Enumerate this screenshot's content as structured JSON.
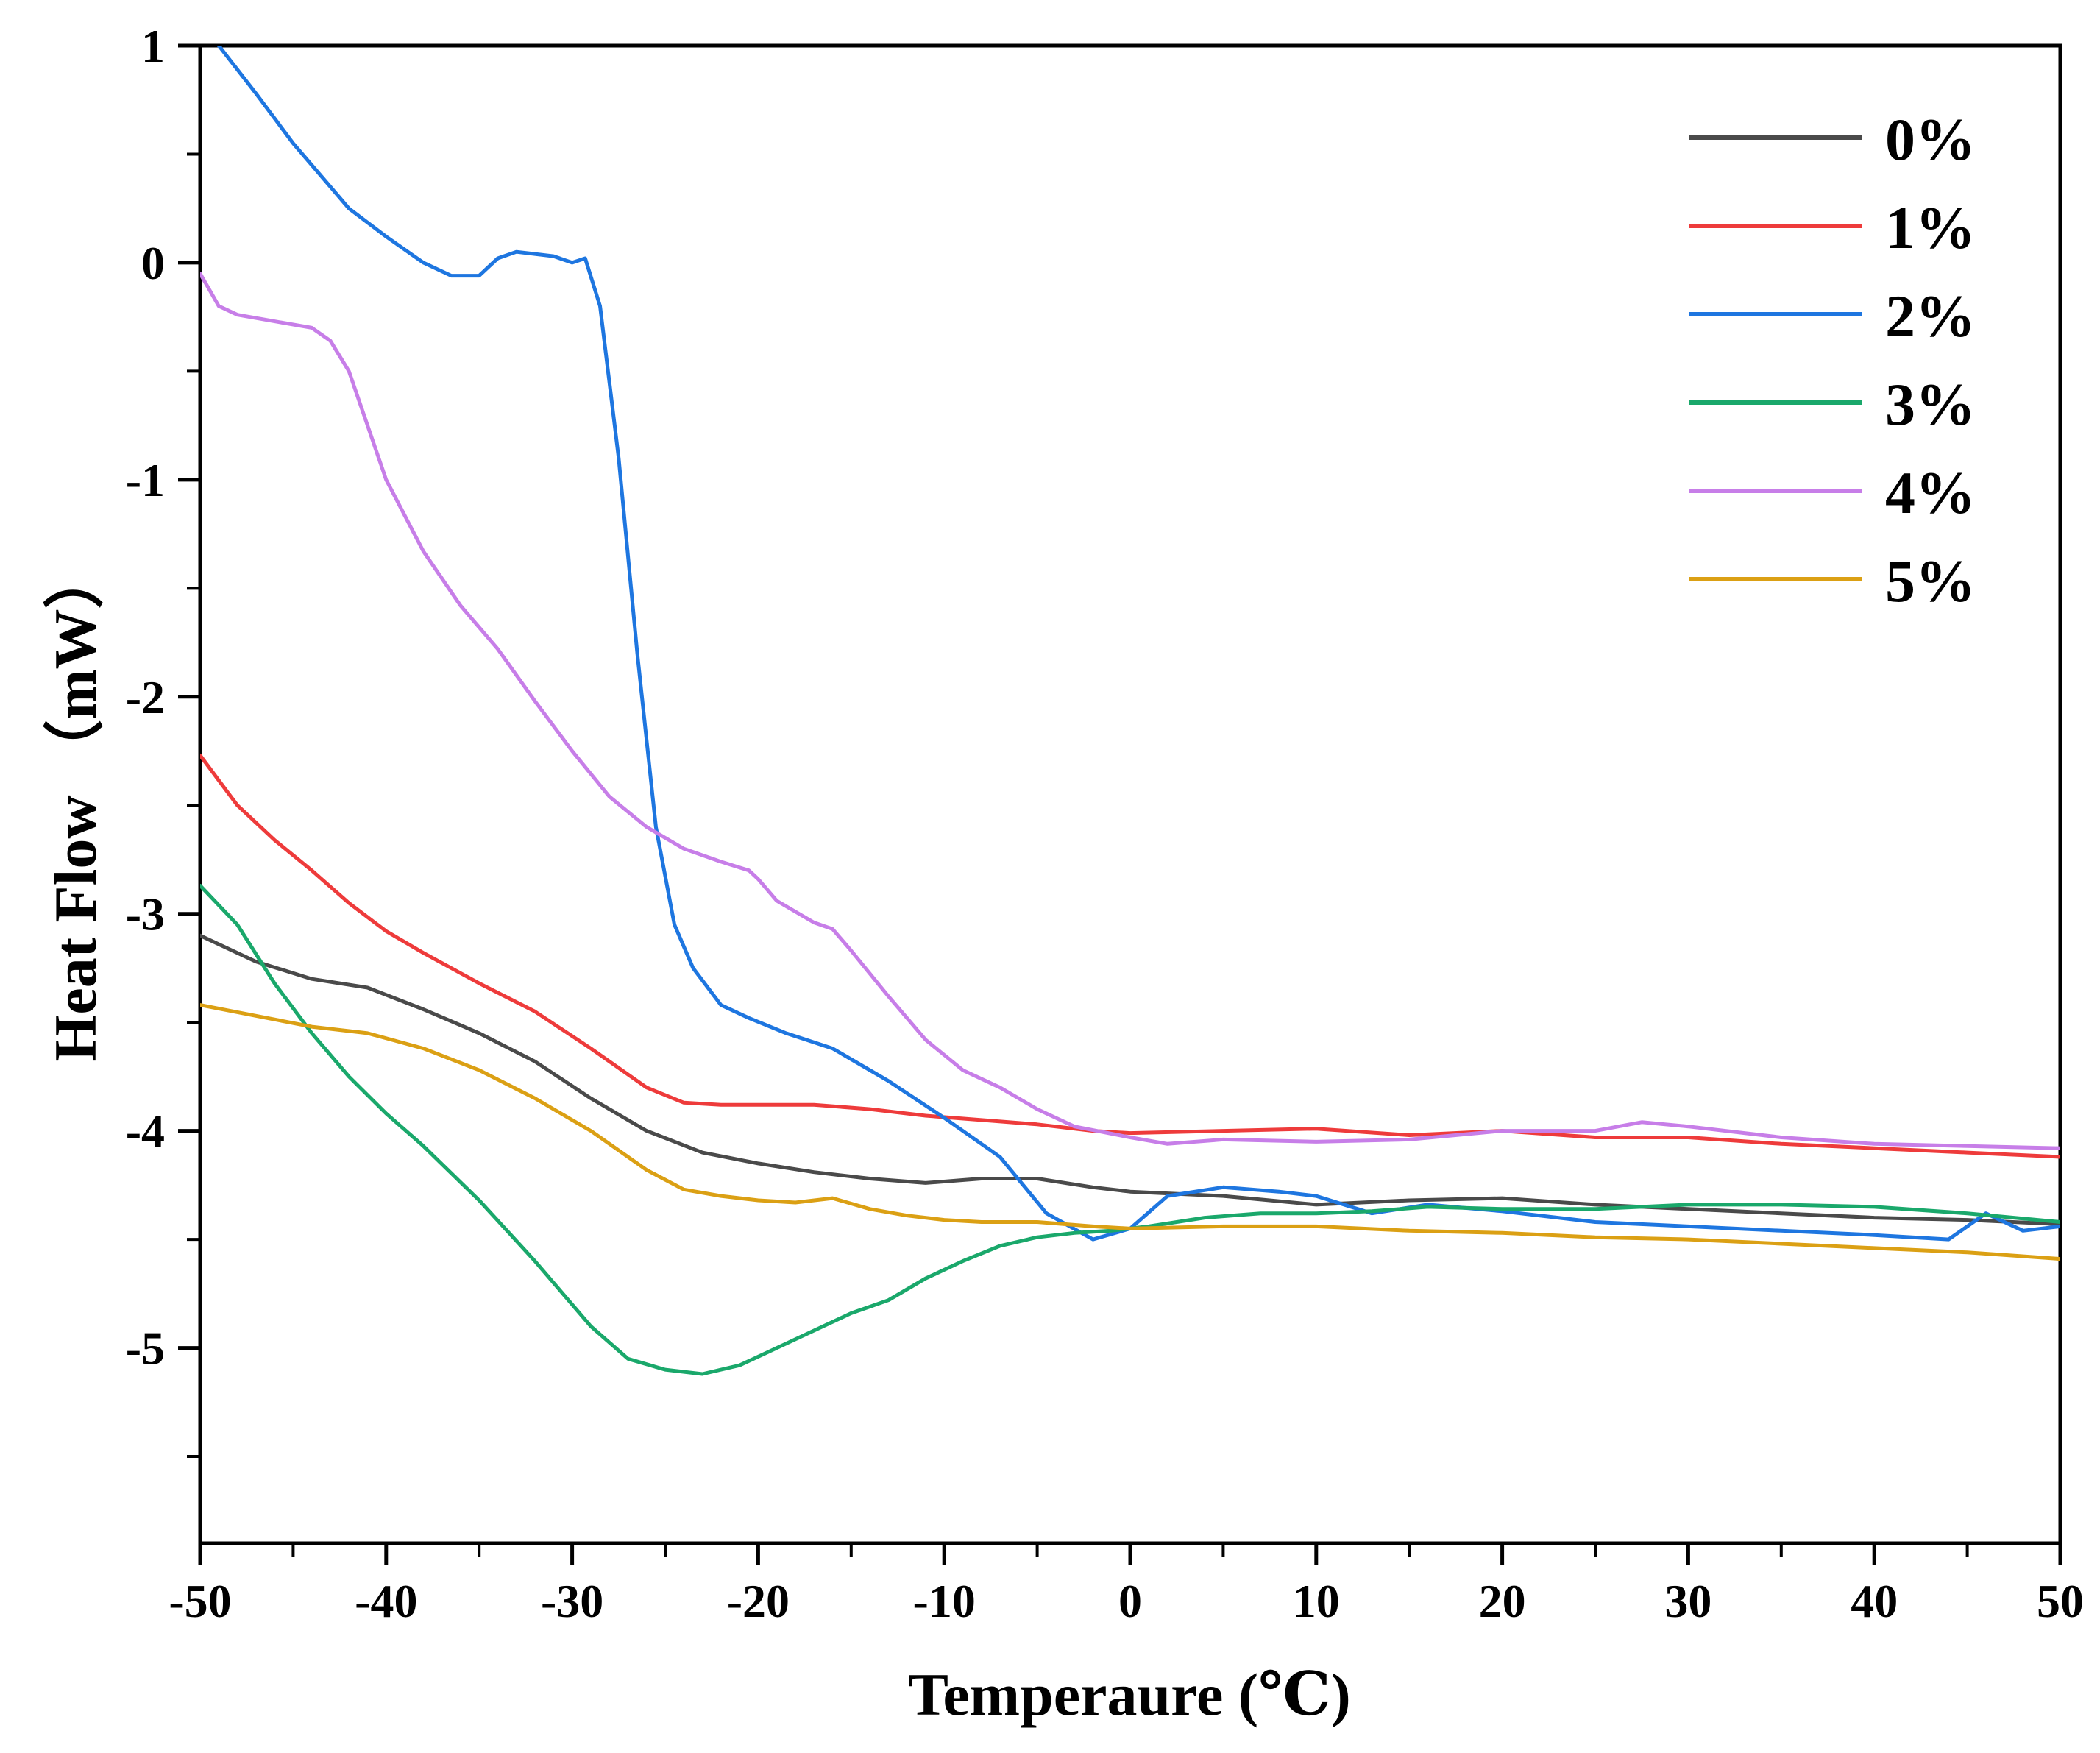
{
  "chart_data": {
    "type": "line",
    "title": "",
    "xlabel": "Temperaure (℃)",
    "ylabel": "Heat Flow （mW）",
    "xlim": [
      -50,
      50
    ],
    "ylim": [
      -5.9,
      1
    ],
    "xticks": [
      -50,
      -40,
      -30,
      -20,
      -10,
      0,
      10,
      20,
      30,
      40,
      50
    ],
    "yticks": [
      1,
      0,
      -1,
      -2,
      -3,
      -4,
      -5
    ],
    "xtick_labels": [
      "-50",
      "-40",
      "-30",
      "-20",
      "-10",
      "0",
      "10",
      "20",
      "30",
      "40",
      "50"
    ],
    "ytick_labels": [
      "1",
      "0",
      "-1",
      "-2",
      "-3",
      "-4",
      "-5"
    ],
    "grid": false,
    "legend_position": "top-right",
    "series": [
      {
        "name": "0%",
        "color": "#4a4a4a",
        "x": [
          -50,
          -47,
          -44,
          -41,
          -38,
          -35,
          -32,
          -29,
          -26,
          -23,
          -20,
          -17,
          -14,
          -11,
          -8,
          -5,
          -2,
          0,
          5,
          10,
          15,
          20,
          25,
          30,
          35,
          40,
          45,
          50
        ],
        "y": [
          -3.1,
          -3.22,
          -3.3,
          -3.34,
          -3.44,
          -3.55,
          -3.68,
          -3.85,
          -4.0,
          -4.1,
          -4.15,
          -4.19,
          -4.22,
          -4.24,
          -4.22,
          -4.22,
          -4.26,
          -4.28,
          -4.3,
          -4.34,
          -4.32,
          -4.31,
          -4.34,
          -4.36,
          -4.38,
          -4.4,
          -4.41,
          -4.43
        ]
      },
      {
        "name": "1%",
        "color": "#ee3b3b",
        "x": [
          -50,
          -48,
          -46,
          -44,
          -42,
          -40,
          -38,
          -35,
          -32,
          -29,
          -26,
          -24,
          -22,
          -20,
          -17,
          -14,
          -11,
          -8,
          -5,
          -2,
          0,
          5,
          10,
          15,
          20,
          25,
          30,
          35,
          40,
          45,
          50
        ],
        "y": [
          -2.27,
          -2.5,
          -2.66,
          -2.8,
          -2.95,
          -3.08,
          -3.18,
          -3.32,
          -3.45,
          -3.62,
          -3.8,
          -3.87,
          -3.88,
          -3.88,
          -3.88,
          -3.9,
          -3.93,
          -3.95,
          -3.97,
          -4.0,
          -4.01,
          -4.0,
          -3.99,
          -4.02,
          -4.0,
          -4.03,
          -4.03,
          -4.06,
          -4.08,
          -4.1,
          -4.12
        ]
      },
      {
        "name": "2%",
        "color": "#1e76e0",
        "x": [
          -49,
          -47,
          -45,
          -42,
          -40,
          -38,
          -36.5,
          -35,
          -34,
          -33,
          -32,
          -31,
          -30,
          -29.3,
          -28.5,
          -27.5,
          -26.5,
          -25.5,
          -24.5,
          -23.5,
          -22,
          -20.5,
          -18.5,
          -16,
          -13,
          -10,
          -7,
          -4.5,
          -2,
          0,
          2,
          5,
          8,
          10,
          13,
          16,
          20,
          25,
          30,
          35,
          40,
          44,
          46,
          48,
          50
        ],
        "y": [
          1.0,
          0.78,
          0.55,
          0.25,
          0.12,
          0.0,
          -0.06,
          -0.06,
          0.02,
          0.05,
          0.04,
          0.03,
          0.0,
          0.02,
          -0.2,
          -0.9,
          -1.8,
          -2.6,
          -3.05,
          -3.25,
          -3.42,
          -3.48,
          -3.55,
          -3.62,
          -3.77,
          -3.94,
          -4.12,
          -4.38,
          -4.5,
          -4.45,
          -4.3,
          -4.26,
          -4.28,
          -4.3,
          -4.38,
          -4.34,
          -4.37,
          -4.42,
          -4.44,
          -4.46,
          -4.48,
          -4.5,
          -4.38,
          -4.46,
          -4.44
        ]
      },
      {
        "name": "3%",
        "color": "#1aa86b",
        "x": [
          -50,
          -48,
          -46,
          -44,
          -42,
          -40,
          -38,
          -35,
          -32,
          -29,
          -27,
          -25,
          -23,
          -21,
          -19,
          -17,
          -15,
          -13,
          -11,
          -9,
          -7,
          -5,
          -3,
          -1,
          1,
          4,
          7,
          10,
          13,
          16,
          20,
          25,
          30,
          35,
          40,
          45,
          50
        ],
        "y": [
          -2.87,
          -3.05,
          -3.32,
          -3.55,
          -3.75,
          -3.92,
          -4.07,
          -4.32,
          -4.6,
          -4.9,
          -5.05,
          -5.1,
          -5.12,
          -5.08,
          -5.0,
          -4.92,
          -4.84,
          -4.78,
          -4.68,
          -4.6,
          -4.53,
          -4.49,
          -4.47,
          -4.46,
          -4.44,
          -4.4,
          -4.38,
          -4.38,
          -4.37,
          -4.35,
          -4.36,
          -4.36,
          -4.34,
          -4.34,
          -4.35,
          -4.38,
          -4.42
        ]
      },
      {
        "name": "4%",
        "color": "#c77ee8",
        "x": [
          -50,
          -49,
          -48,
          -46,
          -44,
          -43,
          -42,
          -41,
          -40,
          -38,
          -36,
          -34,
          -32,
          -30,
          -28,
          -26,
          -24,
          -22,
          -20.5,
          -20,
          -19,
          -17,
          -16,
          -15,
          -13,
          -11,
          -9,
          -7,
          -5,
          -3,
          0,
          2,
          5,
          10,
          15,
          20,
          25,
          27.5,
          30,
          35,
          40,
          45,
          50
        ],
        "y": [
          -0.05,
          -0.2,
          -0.24,
          -0.27,
          -0.3,
          -0.36,
          -0.5,
          -0.75,
          -1.0,
          -1.33,
          -1.58,
          -1.78,
          -2.02,
          -2.25,
          -2.46,
          -2.6,
          -2.7,
          -2.76,
          -2.8,
          -2.84,
          -2.94,
          -3.04,
          -3.07,
          -3.17,
          -3.38,
          -3.58,
          -3.72,
          -3.8,
          -3.9,
          -3.98,
          -4.03,
          -4.06,
          -4.04,
          -4.05,
          -4.04,
          -4.0,
          -4.0,
          -3.96,
          -3.98,
          -4.03,
          -4.06,
          -4.07,
          -4.08
        ]
      },
      {
        "name": "5%",
        "color": "#dba014",
        "x": [
          -50,
          -47,
          -44,
          -41,
          -38,
          -35,
          -32,
          -29,
          -26,
          -24,
          -22,
          -20,
          -18,
          -16,
          -14,
          -12,
          -10,
          -8,
          -5,
          -2,
          0,
          5,
          10,
          15,
          20,
          25,
          30,
          35,
          40,
          45,
          50
        ],
        "y": [
          -3.42,
          -3.47,
          -3.52,
          -3.55,
          -3.62,
          -3.72,
          -3.85,
          -4.0,
          -4.18,
          -4.27,
          -4.3,
          -4.32,
          -4.33,
          -4.31,
          -4.36,
          -4.39,
          -4.41,
          -4.42,
          -4.42,
          -4.44,
          -4.45,
          -4.44,
          -4.44,
          -4.46,
          -4.47,
          -4.49,
          -4.5,
          -4.52,
          -4.54,
          -4.56,
          -4.59
        ]
      }
    ]
  }
}
